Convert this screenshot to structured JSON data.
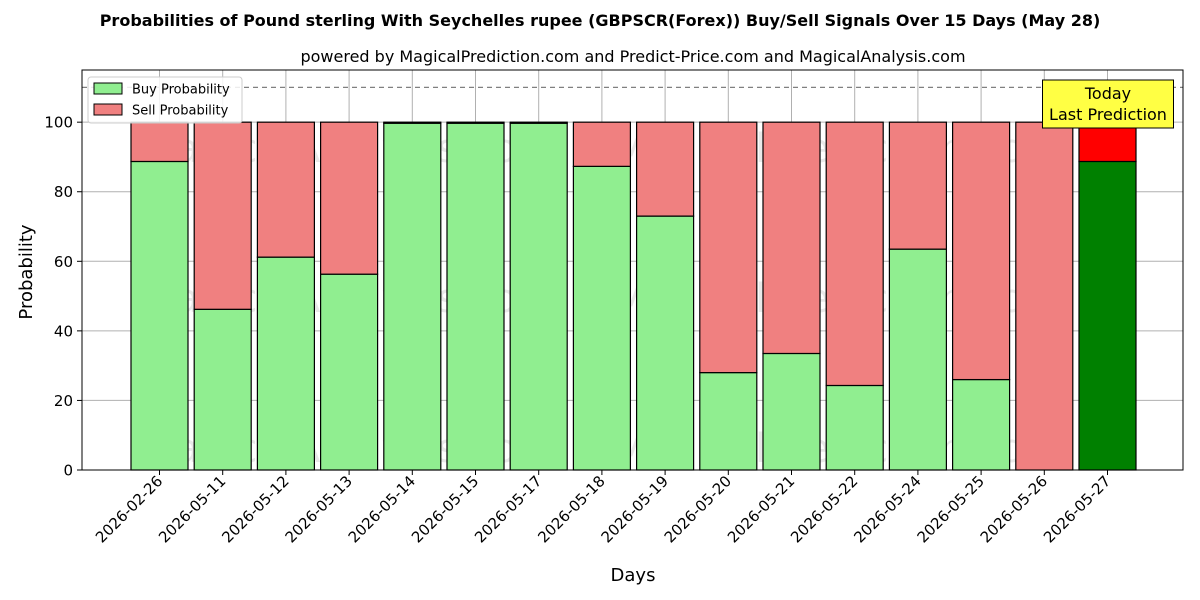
{
  "chart_data": {
    "type": "bar",
    "title": "Probabilities of Pound sterling With Seychelles rupee (GBPSCR(Forex)) Buy/Sell Signals Over 15 Days (May 28)",
    "subtitle": "powered by MagicalPrediction.com and Predict-Price.com and MagicalAnalysis.com",
    "xlabel": "Days",
    "ylabel": "Probability",
    "ylim": [
      0,
      115
    ],
    "yticks": [
      0,
      20,
      40,
      60,
      80,
      100
    ],
    "grid": true,
    "legend_position": "top-left",
    "reference_line": 110,
    "categories": [
      "2026-02-26",
      "2026-05-11",
      "2026-05-12",
      "2026-05-13",
      "2026-05-14",
      "2026-05-15",
      "2026-05-17",
      "2026-05-18",
      "2026-05-19",
      "2026-05-20",
      "2026-05-21",
      "2026-05-22",
      "2026-05-24",
      "2026-05-25",
      "2026-05-26",
      "2026-05-27"
    ],
    "series": [
      {
        "name": "Buy Probability",
        "color": "#90ee90",
        "highlight_color": "#008000",
        "values": [
          88.7,
          46.2,
          61.2,
          56.3,
          99.7,
          99.7,
          99.7,
          87.3,
          73.0,
          28.0,
          33.5,
          24.3,
          63.5,
          26.0,
          0.0,
          88.7
        ]
      },
      {
        "name": "Sell Probability",
        "color": "#f08080",
        "highlight_color": "#ff0000",
        "values": [
          11.3,
          53.8,
          38.8,
          43.7,
          0.3,
          0.3,
          0.3,
          12.7,
          27.0,
          72.0,
          66.5,
          75.7,
          36.5,
          74.0,
          100.0,
          11.3
        ]
      }
    ],
    "highlight_index": 15,
    "annotation": {
      "line1": "Today",
      "line2": "Last Prediction",
      "color": "#ffff44"
    },
    "watermarks": [
      "MagicalAnalysis.com",
      "MagicalPrediction.com"
    ]
  }
}
